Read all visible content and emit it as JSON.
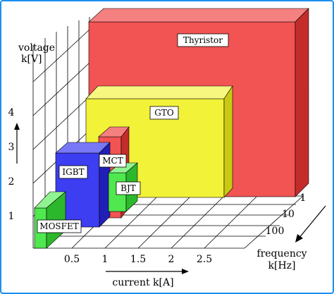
{
  "axes": {
    "y_label_line1": "voltage",
    "y_label_line2": "k[V]",
    "y_ticks": [
      "1",
      "2",
      "3",
      "4"
    ],
    "x_label": "current k[A]",
    "x_ticks": [
      "0.5",
      "1",
      "1.5",
      "2",
      "2.5"
    ],
    "z_label_line1": "frequency",
    "z_label_line2": "k[Hz]",
    "z_ticks": [
      "1",
      "10",
      "100"
    ]
  },
  "devices": [
    {
      "name": "Thyristor",
      "color": "#f25353"
    },
    {
      "name": "GTO",
      "color": "#f2f238"
    },
    {
      "name": "MCT",
      "color": "#f25353"
    },
    {
      "name": "IGBT",
      "color": "#3d3df2"
    },
    {
      "name": "BJT",
      "color": "#4fe84f"
    },
    {
      "name": "MOSFET",
      "color": "#4fe84f"
    }
  ],
  "frame_color": "#1e8ff0"
}
